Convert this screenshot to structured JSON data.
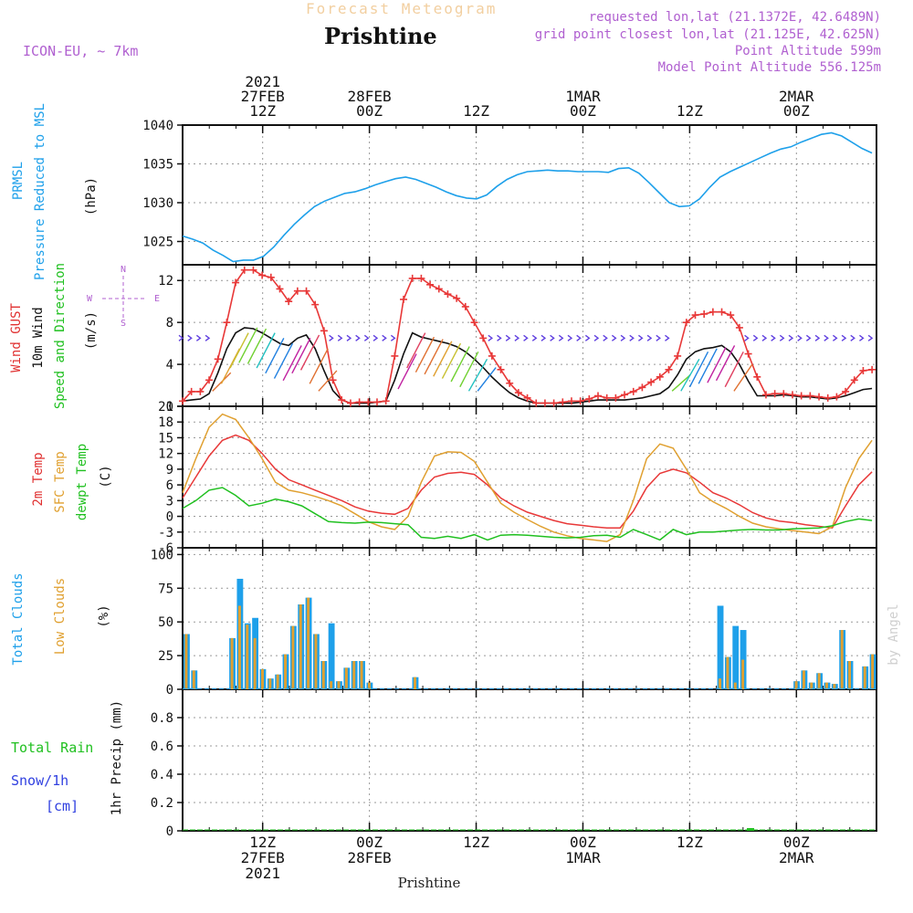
{
  "header": {
    "subtitle": "Forecast Meteogram",
    "title": "Prishtine",
    "model": "ICON-EU, ~ 7km",
    "requested": "requested lon,lat (21.1372E, 42.6489N)",
    "grid": "grid point closest lon,lat (21.125E, 42.625N)",
    "point_alt": "Point Altitude 599m",
    "model_alt": "Model Point Altitude 556.125m"
  },
  "footer": {
    "location": "Prishtine"
  },
  "watermark": "by Angel",
  "panels": {
    "pressure": {
      "label1": "PRMSL",
      "label2": "Pressure Reduced to MSL",
      "unit": "(hPa)"
    },
    "wind": {
      "label1": "Wind GUST",
      "label2": "10m Wind",
      "label3": "Speed and Direction",
      "unit": "(m/s)",
      "compass": {
        "n": "N",
        "w": "W",
        "e": "E",
        "s": "S"
      }
    },
    "temp": {
      "label1": "2m Temp",
      "label2": "SFC Temp",
      "label3": "dewpt Temp",
      "unit": "(C)"
    },
    "cloud": {
      "label1": "Total Clouds",
      "label2": "Low Clouds",
      "unit": "(%)"
    },
    "precip": {
      "label1": "Total  Rain",
      "label2": "Snow/1h",
      "label3": "[cm]",
      "unit": "1hr Precip (mm)"
    }
  },
  "colors": {
    "pressure": "#1ea0ea",
    "gust": "#e83838",
    "wind10m": "#111111",
    "temp2m": "#e83838",
    "sfc": "#e0a030",
    "dewpt": "#20c020",
    "total_cloud": "#1ea0ea",
    "low_cloud": "#e0a030",
    "arrow": "#8a30d0"
  },
  "x_axis": {
    "top": [
      {
        "hour": 9,
        "lines": [
          "2021",
          "27FEB",
          "12Z"
        ]
      },
      {
        "hour": 21,
        "lines": [
          "28FEB",
          "00Z"
        ]
      },
      {
        "hour": 33,
        "lines": [
          "12Z"
        ]
      },
      {
        "hour": 45,
        "lines": [
          "1MAR",
          "00Z"
        ]
      },
      {
        "hour": 57,
        "lines": [
          "12Z"
        ]
      },
      {
        "hour": 69,
        "lines": [
          "2MAR",
          "00Z"
        ]
      }
    ],
    "bottom": [
      {
        "hour": 9,
        "lines": [
          "12Z",
          "27FEB",
          "2021"
        ]
      },
      {
        "hour": 21,
        "lines": [
          "00Z",
          "28FEB"
        ]
      },
      {
        "hour": 33,
        "lines": [
          "12Z"
        ]
      },
      {
        "hour": 45,
        "lines": [
          "00Z",
          "1MAR"
        ]
      },
      {
        "hour": 57,
        "lines": [
          "12Z"
        ]
      },
      {
        "hour": 69,
        "lines": [
          "00Z",
          "2MAR"
        ]
      }
    ]
  },
  "chart_data": [
    {
      "type": "line",
      "name": "pressure",
      "ylim": [
        1022,
        1040
      ],
      "yticks": [
        1025,
        1030,
        1035,
        1040
      ],
      "series": [
        {
          "name": "PRMSL",
          "values": [
            1025.7,
            1025.3,
            1024.8,
            1023.9,
            1023.2,
            1022.4,
            1022.6,
            1022.6,
            1023.1,
            1024.3,
            1025.8,
            1027.2,
            1028.4,
            1029.5,
            1030.2,
            1030.7,
            1031.2,
            1031.4,
            1031.8,
            1032.3,
            1032.7,
            1033.1,
            1033.3,
            1033.0,
            1032.5,
            1032.0,
            1031.4,
            1030.9,
            1030.6,
            1030.5,
            1031.0,
            1032.1,
            1033.0,
            1033.6,
            1034.0,
            1034.1,
            1034.2,
            1034.1,
            1034.1,
            1034.0,
            1034.0,
            1034.0,
            1033.9,
            1034.4,
            1034.5,
            1033.8,
            1032.6,
            1031.3,
            1030.0,
            1029.5,
            1029.6,
            1030.5,
            1032.0,
            1033.3,
            1034.0,
            1034.6,
            1035.2,
            1035.8,
            1036.4,
            1036.9,
            1037.2,
            1037.8,
            1038.3,
            1038.8,
            1039.0,
            1038.6,
            1037.8,
            1037.0,
            1036.4
          ]
        }
      ]
    },
    {
      "type": "line",
      "name": "wind",
      "ylim": [
        0,
        13.5
      ],
      "yticks": [
        0,
        4,
        8,
        12
      ],
      "series": [
        {
          "name": "Wind GUST",
          "values": [
            0.5,
            1.4,
            1.4,
            2.5,
            4.5,
            8.0,
            11.8,
            13.0,
            13.0,
            12.5,
            12.3,
            11.2,
            10.0,
            11.0,
            11.0,
            9.7,
            7.2,
            2.5,
            0.6,
            0.3,
            0.4,
            0.4,
            0.4,
            0.5,
            4.8,
            10.2,
            12.2,
            12.2,
            11.6,
            11.2,
            10.7,
            10.3,
            9.5,
            8.0,
            6.5,
            4.8,
            3.5,
            2.2,
            1.3,
            0.8,
            0.3,
            0.3,
            0.3,
            0.4,
            0.5,
            0.5,
            0.7,
            1.0,
            0.8,
            0.8,
            1.1,
            1.4,
            1.8,
            2.3,
            2.8,
            3.5,
            4.8,
            8.0,
            8.7,
            8.8,
            9.0,
            9.0,
            8.7,
            7.5,
            5.0,
            2.8,
            1.1,
            1.2,
            1.2,
            1.1,
            1.0,
            1.0,
            0.9,
            0.8,
            0.9,
            1.4,
            2.5,
            3.4,
            3.5
          ]
        },
        {
          "name": "10m Wind",
          "values": [
            0.5,
            0.6,
            0.7,
            1.2,
            3.2,
            5.5,
            7.0,
            7.5,
            7.4,
            7.0,
            6.5,
            6.0,
            5.8,
            6.5,
            6.8,
            5.5,
            3.4,
            1.5,
            0.6,
            0.3,
            0.3,
            0.3,
            0.4,
            0.5,
            2.5,
            5.0,
            7.0,
            6.6,
            6.4,
            6.2,
            6.0,
            5.7,
            5.2,
            4.5,
            3.7,
            2.8,
            2.0,
            1.3,
            0.8,
            0.5,
            0.3,
            0.3,
            0.3,
            0.3,
            0.3,
            0.4,
            0.5,
            0.6,
            0.6,
            0.6,
            0.6,
            0.7,
            0.8,
            1.0,
            1.2,
            1.8,
            3.0,
            4.5,
            5.2,
            5.5,
            5.6,
            5.8,
            5.2,
            4.0,
            2.4,
            1.0,
            1.0,
            1.0,
            1.1,
            1.0,
            0.9,
            0.9,
            0.8,
            0.7,
            0.8,
            1.0,
            1.3,
            1.6,
            1.7
          ]
        }
      ]
    },
    {
      "type": "line",
      "name": "temperature",
      "ylim": [
        -6,
        21
      ],
      "yticks": [
        -6,
        -3,
        0,
        3,
        6,
        9,
        12,
        15,
        18,
        21
      ],
      "series": [
        {
          "name": "2m Temp",
          "values": [
            3.5,
            7.5,
            11.5,
            14.5,
            15.5,
            14.5,
            12.0,
            9.0,
            7.0,
            6.0,
            5.0,
            4.0,
            3.0,
            1.8,
            1.0,
            0.6,
            0.4,
            1.5,
            5.0,
            7.5,
            8.2,
            8.4,
            8.0,
            6.0,
            3.5,
            2.0,
            0.8,
            0.0,
            -0.8,
            -1.4,
            -1.7,
            -2.0,
            -2.2,
            -2.2,
            1.0,
            5.5,
            8.2,
            9.0,
            8.3,
            6.5,
            4.5,
            3.5,
            2.2,
            0.7,
            -0.3,
            -0.9,
            -1.2,
            -1.6,
            -1.9,
            -2.2,
            2.0,
            6.0,
            8.5
          ]
        },
        {
          "name": "SFC Temp",
          "values": [
            4.5,
            11.0,
            17.0,
            19.5,
            18.5,
            15.0,
            11.0,
            6.5,
            5.0,
            4.5,
            3.8,
            3.0,
            2.0,
            0.5,
            -1.0,
            -2.0,
            -2.5,
            0.0,
            6.5,
            11.5,
            12.3,
            12.2,
            10.5,
            6.5,
            2.5,
            0.8,
            -0.6,
            -1.9,
            -3.0,
            -3.7,
            -4.2,
            -4.5,
            -4.8,
            -3.5,
            3.0,
            11.0,
            13.8,
            13.0,
            9.0,
            4.5,
            2.8,
            1.5,
            0.0,
            -1.3,
            -2.0,
            -2.4,
            -2.7,
            -3.0,
            -3.3,
            -2.0,
            5.5,
            11.0,
            14.5
          ]
        },
        {
          "name": "dewpt Temp",
          "values": [
            1.5,
            3.0,
            5.0,
            5.5,
            4.0,
            2.0,
            2.5,
            3.3,
            2.8,
            2.0,
            0.5,
            -1.0,
            -1.2,
            -1.3,
            -1.1,
            -1.2,
            -1.4,
            -1.6,
            -4.0,
            -4.2,
            -3.8,
            -4.2,
            -3.5,
            -4.5,
            -3.6,
            -3.5,
            -3.6,
            -3.8,
            -4.0,
            -4.1,
            -4.0,
            -3.7,
            -3.6,
            -4.0,
            -2.5,
            -3.5,
            -4.5,
            -2.5,
            -3.5,
            -3.0,
            -3.0,
            -2.8,
            -2.6,
            -2.5,
            -2.6,
            -2.6,
            -2.4,
            -2.3,
            -2.2,
            -1.8,
            -1.0,
            -0.5,
            -0.8
          ]
        }
      ]
    },
    {
      "type": "bar",
      "name": "clouds",
      "ylim": [
        0,
        105
      ],
      "yticks": [
        0,
        25,
        50,
        75,
        100
      ],
      "series": [
        {
          "name": "Total Clouds",
          "values": [
            41,
            14,
            0,
            0,
            0,
            0,
            38,
            82,
            49,
            53,
            15,
            8,
            11,
            26,
            47,
            63,
            68,
            41,
            21,
            49,
            6,
            16,
            21,
            21,
            5,
            0,
            0,
            0,
            0,
            0,
            9,
            0,
            0,
            0,
            0,
            0,
            0,
            0,
            0,
            0,
            0,
            0,
            0,
            0,
            0,
            0,
            0,
            0,
            0,
            0,
            0,
            0,
            0,
            0,
            0,
            0,
            0,
            0,
            0,
            0,
            0,
            0,
            0,
            0,
            0,
            0,
            0,
            0,
            0,
            0,
            62,
            24,
            47,
            44,
            0,
            0,
            0,
            0,
            0,
            0,
            6,
            14,
            5,
            12,
            5,
            4,
            44,
            21,
            0,
            17,
            26
          ]
        },
        {
          "name": "Low Clouds",
          "values": [
            41,
            14,
            0,
            0,
            0,
            0,
            38,
            62,
            48,
            38,
            15,
            8,
            11,
            26,
            47,
            63,
            68,
            41,
            21,
            6,
            6,
            16,
            21,
            21,
            5,
            0,
            0,
            0,
            0,
            0,
            9,
            0,
            0,
            0,
            0,
            0,
            0,
            0,
            0,
            0,
            0,
            0,
            0,
            0,
            0,
            0,
            0,
            0,
            0,
            0,
            0,
            0,
            0,
            0,
            0,
            0,
            0,
            0,
            0,
            0,
            0,
            0,
            0,
            0,
            0,
            0,
            0,
            0,
            0,
            0,
            8,
            24,
            5,
            22,
            0,
            0,
            0,
            0,
            0,
            0,
            6,
            14,
            5,
            12,
            5,
            4,
            44,
            21,
            0,
            17,
            26
          ]
        }
      ]
    },
    {
      "type": "bar",
      "name": "precipitation",
      "ylim": [
        0,
        1
      ],
      "yticks": [
        0,
        0.2,
        0.4,
        0.6,
        0.8
      ],
      "series": [
        {
          "name": "Total Rain",
          "values": [
            0,
            0,
            0,
            0,
            0,
            0,
            0,
            0,
            0,
            0,
            0,
            0,
            0,
            0,
            0,
            0,
            0,
            0,
            0,
            0,
            0,
            0,
            0,
            0,
            0,
            0,
            0,
            0,
            0,
            0,
            0,
            0,
            0,
            0,
            0,
            0,
            0,
            0,
            0,
            0,
            0,
            0,
            0,
            0,
            0,
            0,
            0,
            0,
            0,
            0,
            0,
            0,
            0,
            0,
            0,
            0,
            0,
            0,
            0,
            0,
            0,
            0,
            0,
            0,
            0,
            0,
            0,
            0,
            0,
            0,
            0,
            0,
            0,
            0,
            0.01,
            0,
            0,
            0,
            0,
            0,
            0,
            0,
            0,
            0,
            0,
            0,
            0,
            0,
            0,
            0,
            0
          ]
        }
      ]
    }
  ]
}
